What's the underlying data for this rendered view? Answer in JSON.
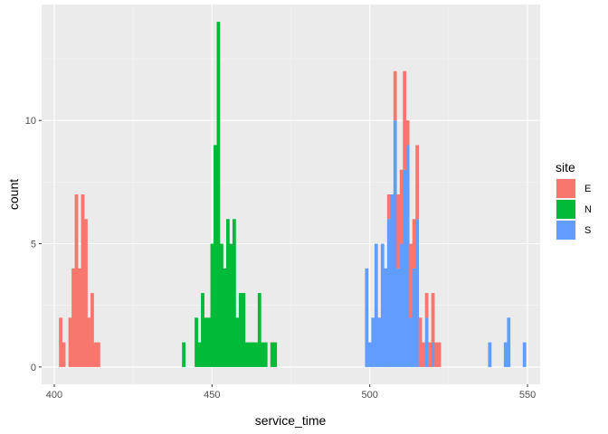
{
  "chart_data": {
    "type": "bar",
    "subtype": "stacked-histogram",
    "title": "",
    "xlabel": "service_time",
    "ylabel": "count",
    "xlim": [
      396,
      554
    ],
    "ylim": [
      -0.7,
      14.7
    ],
    "x_ticks": [
      400,
      450,
      500,
      550
    ],
    "x_tick_labels": [
      "400",
      "450",
      "500",
      "550"
    ],
    "y_ticks": [
      0,
      5,
      10
    ],
    "y_tick_labels": [
      "0",
      "5",
      "10"
    ],
    "bin_width": 1,
    "grid": true,
    "legend": {
      "title": "site",
      "position": "right"
    },
    "stack_order": [
      "S",
      "N",
      "E"
    ],
    "series": [
      {
        "name": "E",
        "color": "#F8766D",
        "bins": [
          [
            402,
            2
          ],
          [
            403,
            1
          ],
          [
            405,
            2
          ],
          [
            406,
            4
          ],
          [
            407,
            7
          ],
          [
            408,
            4
          ],
          [
            409,
            7
          ],
          [
            410,
            6
          ],
          [
            411,
            2
          ],
          [
            412,
            3
          ],
          [
            413,
            1
          ],
          [
            414,
            1
          ],
          [
            506,
            1
          ],
          [
            508,
            2
          ],
          [
            509,
            3
          ],
          [
            510,
            3
          ],
          [
            511,
            4
          ],
          [
            512,
            1
          ],
          [
            513,
            3
          ],
          [
            514,
            2
          ],
          [
            515,
            3
          ],
          [
            516,
            2
          ],
          [
            517,
            1
          ],
          [
            518,
            1
          ],
          [
            519,
            1
          ],
          [
            520,
            2
          ],
          [
            521,
            1
          ],
          [
            522,
            1
          ]
        ]
      },
      {
        "name": "N",
        "color": "#00BA38",
        "bins": [
          [
            441,
            1
          ],
          [
            445,
            2
          ],
          [
            446,
            1
          ],
          [
            447,
            3
          ],
          [
            448,
            2
          ],
          [
            449,
            2
          ],
          [
            450,
            5
          ],
          [
            451,
            9
          ],
          [
            452,
            14
          ],
          [
            453,
            5
          ],
          [
            454,
            4
          ],
          [
            455,
            6
          ],
          [
            456,
            5
          ],
          [
            457,
            6
          ],
          [
            458,
            2
          ],
          [
            459,
            3
          ],
          [
            460,
            3
          ],
          [
            461,
            1
          ],
          [
            462,
            1
          ],
          [
            463,
            1
          ],
          [
            464,
            1
          ],
          [
            465,
            3
          ],
          [
            466,
            1
          ],
          [
            467,
            1
          ],
          [
            469,
            1
          ],
          [
            470,
            1
          ]
        ]
      },
      {
        "name": "S",
        "color": "#619CFF",
        "bins": [
          [
            499,
            4
          ],
          [
            500,
            1
          ],
          [
            501,
            2
          ],
          [
            502,
            5
          ],
          [
            503,
            2
          ],
          [
            504,
            5
          ],
          [
            505,
            4
          ],
          [
            506,
            6
          ],
          [
            507,
            7
          ],
          [
            508,
            10
          ],
          [
            509,
            4
          ],
          [
            510,
            5
          ],
          [
            511,
            8
          ],
          [
            512,
            9
          ],
          [
            513,
            2
          ],
          [
            514,
            4
          ],
          [
            515,
            6
          ],
          [
            518,
            2
          ],
          [
            520,
            1
          ],
          [
            538,
            1
          ],
          [
            543,
            1
          ],
          [
            544,
            2
          ],
          [
            549,
            1
          ]
        ]
      }
    ]
  }
}
